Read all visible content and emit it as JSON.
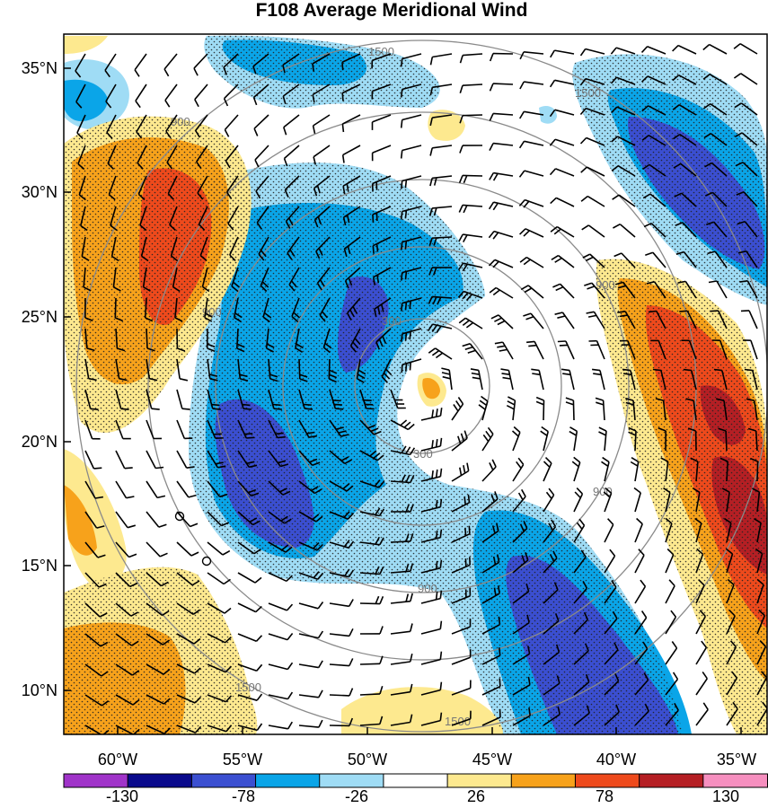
{
  "title": "F108 Average Meridional Wind",
  "map": {
    "lat_labels": [
      "35°N",
      "30°N",
      "25°N",
      "20°N",
      "15°N",
      "10°N"
    ],
    "lon_labels": [
      "60°W",
      "55°W",
      "50°W",
      "45°W",
      "40°W",
      "35°W"
    ],
    "range_rings": [
      {
        "label": "300",
        "radius_km": 300
      },
      {
        "label": "900",
        "radius_km": 900
      },
      {
        "label": "1500",
        "radius_km": 1500
      }
    ],
    "contour_labels": [
      "1500",
      "1500",
      "900",
      "900",
      "900",
      "300",
      "300",
      "900",
      "900",
      "1500",
      "1500"
    ],
    "features": [
      "filled meridional wind contours",
      "wind barbs",
      "stippled significance",
      "range rings"
    ]
  },
  "colorbar": {
    "labels": [
      "-130",
      "-78",
      "-26",
      "26",
      "78",
      "130"
    ],
    "colors": [
      "#a033c9",
      "#0a0a8c",
      "#3b4fd1",
      "#0aa5e8",
      "#9fdcf5",
      "#ffffff",
      "#fde98f",
      "#f7a21b",
      "#ee4a1c",
      "#b51f24",
      "#f68fbf"
    ]
  },
  "colors": {
    "strong_negative": "#3b4fd1",
    "negative": "#0aa5e8",
    "weak_negative": "#9fdcf5",
    "weak_positive": "#fde98f",
    "positive": "#f7a21b",
    "strong_positive": "#ee4a1c",
    "max_positive": "#b51f24",
    "ring": "#8a8a8a"
  }
}
